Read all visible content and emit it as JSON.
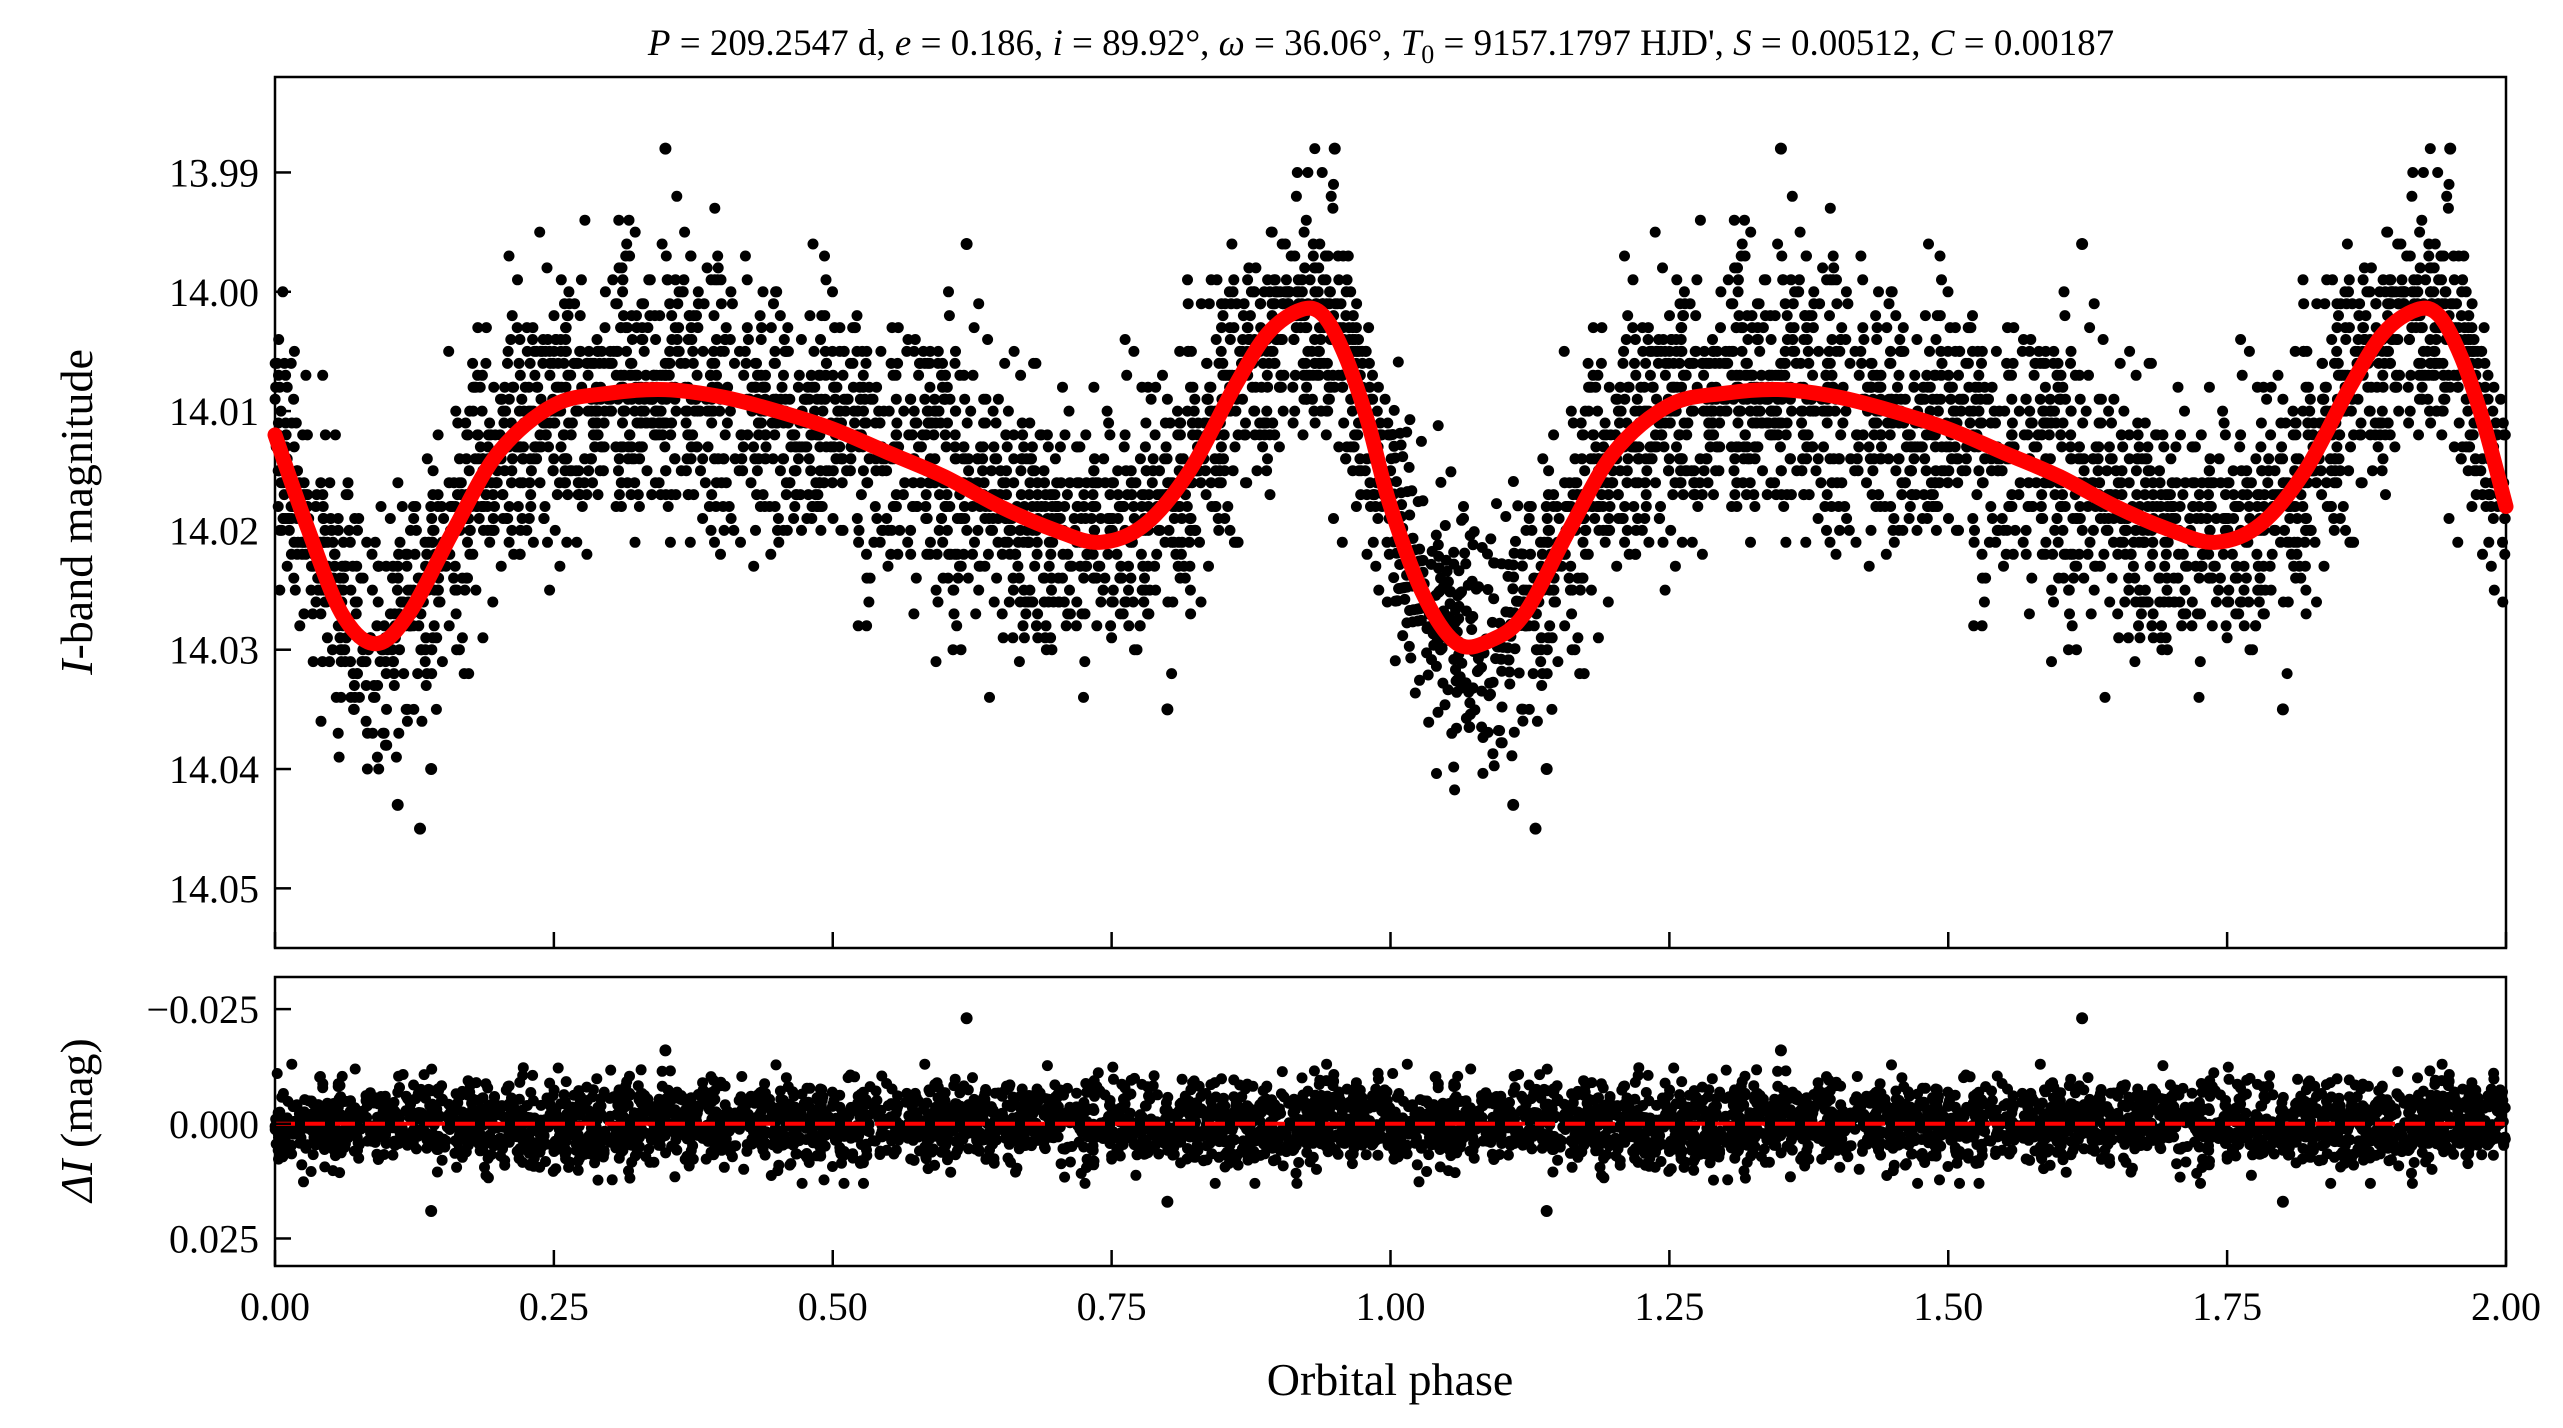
{
  "chart_data": [
    {
      "panel": "light-curve",
      "type": "scatter",
      "title": "P = 209.2547 d, e = 0.186, i = 89.92°, ω = 36.06°, T0 = 9157.1797 HJD', S = 0.00512, C = 0.00187",
      "title_parts": {
        "P": "209.2547 d",
        "e": "0.186",
        "i": "89.92°",
        "omega": "36.06°",
        "T0": "9157.1797 HJD'",
        "S": "0.00512",
        "C": "0.00187"
      },
      "xlabel": "",
      "ylabel_italic": "I",
      "ylabel_rest": "-band magnitude",
      "xlim": [
        0.0,
        2.0
      ],
      "ylim": [
        14.055,
        13.982
      ],
      "y_inverted": true,
      "yticks": [
        "13.99",
        "14.00",
        "14.01",
        "14.02",
        "14.03",
        "14.04",
        "14.05"
      ],
      "ytick_values": [
        13.99,
        14.0,
        14.01,
        14.02,
        14.03,
        14.04,
        14.05
      ],
      "series": [
        {
          "kind": "points",
          "color": "#000000",
          "note_scatter_std_mag": 0.0055,
          "phases_sample_count": 2400
        },
        {
          "kind": "model",
          "color": "#ff0000",
          "x": [
            0.0,
            0.03,
            0.06,
            0.09,
            0.12,
            0.16,
            0.2,
            0.25,
            0.3,
            0.35,
            0.4,
            0.45,
            0.5,
            0.55,
            0.6,
            0.65,
            0.7,
            0.74,
            0.78,
            0.82,
            0.86,
            0.89,
            0.92,
            0.94,
            0.96,
            0.98,
            1.0,
            1.03,
            1.06,
            1.09,
            1.12,
            1.16,
            1.2,
            1.25,
            1.3,
            1.35,
            1.4,
            1.45,
            1.5,
            1.55,
            1.6,
            1.65,
            1.7,
            1.74,
            1.78,
            1.82,
            1.86,
            1.89,
            1.92,
            1.94,
            1.96,
            1.98,
            2.0
          ],
          "y": [
            14.012,
            14.02,
            14.027,
            14.0295,
            14.027,
            14.02,
            14.0135,
            14.0095,
            14.0085,
            14.0082,
            14.0088,
            14.01,
            14.0115,
            14.0135,
            14.0155,
            14.018,
            14.02,
            14.021,
            14.0195,
            14.015,
            14.008,
            14.0035,
            14.0015,
            14.002,
            14.0055,
            14.011,
            14.018,
            14.0255,
            14.0295,
            14.0292,
            14.027,
            14.02,
            14.0135,
            14.0095,
            14.0085,
            14.0082,
            14.0088,
            14.01,
            14.0115,
            14.0135,
            14.0155,
            14.018,
            14.02,
            14.021,
            14.0195,
            14.015,
            14.008,
            14.0035,
            14.0015,
            14.002,
            14.0055,
            14.011,
            14.018
          ]
        }
      ],
      "outliers": [
        {
          "x": 0.35,
          "y": 13.988
        },
        {
          "x": 0.62,
          "y": 13.996
        },
        {
          "x": 0.13,
          "y": 14.045
        },
        {
          "x": 0.11,
          "y": 14.043
        },
        {
          "x": 0.14,
          "y": 14.04
        },
        {
          "x": 1.35,
          "y": 13.988
        },
        {
          "x": 1.62,
          "y": 13.996
        },
        {
          "x": 1.13,
          "y": 14.045
        },
        {
          "x": 1.11,
          "y": 14.043
        },
        {
          "x": 1.14,
          "y": 14.04
        },
        {
          "x": 0.8,
          "y": 14.035
        },
        {
          "x": 1.8,
          "y": 14.035
        },
        {
          "x": 0.95,
          "y": 13.988
        },
        {
          "x": 1.95,
          "y": 13.988
        }
      ]
    },
    {
      "panel": "residuals",
      "type": "scatter",
      "xlabel": "Orbital phase",
      "ylabel_italic": "ΔI",
      "ylabel_rest": " (mag)",
      "xlim": [
        0.0,
        2.0
      ],
      "ylim": [
        0.031,
        -0.032
      ],
      "y_inverted": true,
      "yticks": [
        "−0.025",
        "0.000",
        "0.025"
      ],
      "ytick_values": [
        -0.025,
        0.0,
        0.025
      ],
      "xticks": [
        "0.00",
        "0.25",
        "0.50",
        "0.75",
        "1.00",
        "1.25",
        "1.50",
        "1.75",
        "2.00"
      ],
      "xtick_values": [
        0.0,
        0.25,
        0.5,
        0.75,
        1.0,
        1.25,
        1.5,
        1.75,
        2.0
      ],
      "series": [
        {
          "kind": "points",
          "color": "#000000",
          "note_scatter_std_mag": 0.0045
        },
        {
          "kind": "zero-line",
          "color": "#ff0000",
          "style": "dashed",
          "y": 0.0
        }
      ],
      "outliers": [
        {
          "x": 0.62,
          "y": -0.023
        },
        {
          "x": 1.62,
          "y": -0.023
        },
        {
          "x": 0.14,
          "y": 0.019
        },
        {
          "x": 1.14,
          "y": 0.019
        },
        {
          "x": 0.8,
          "y": 0.017
        },
        {
          "x": 1.8,
          "y": 0.017
        },
        {
          "x": 0.35,
          "y": -0.016
        },
        {
          "x": 1.35,
          "y": -0.016
        }
      ]
    }
  ]
}
